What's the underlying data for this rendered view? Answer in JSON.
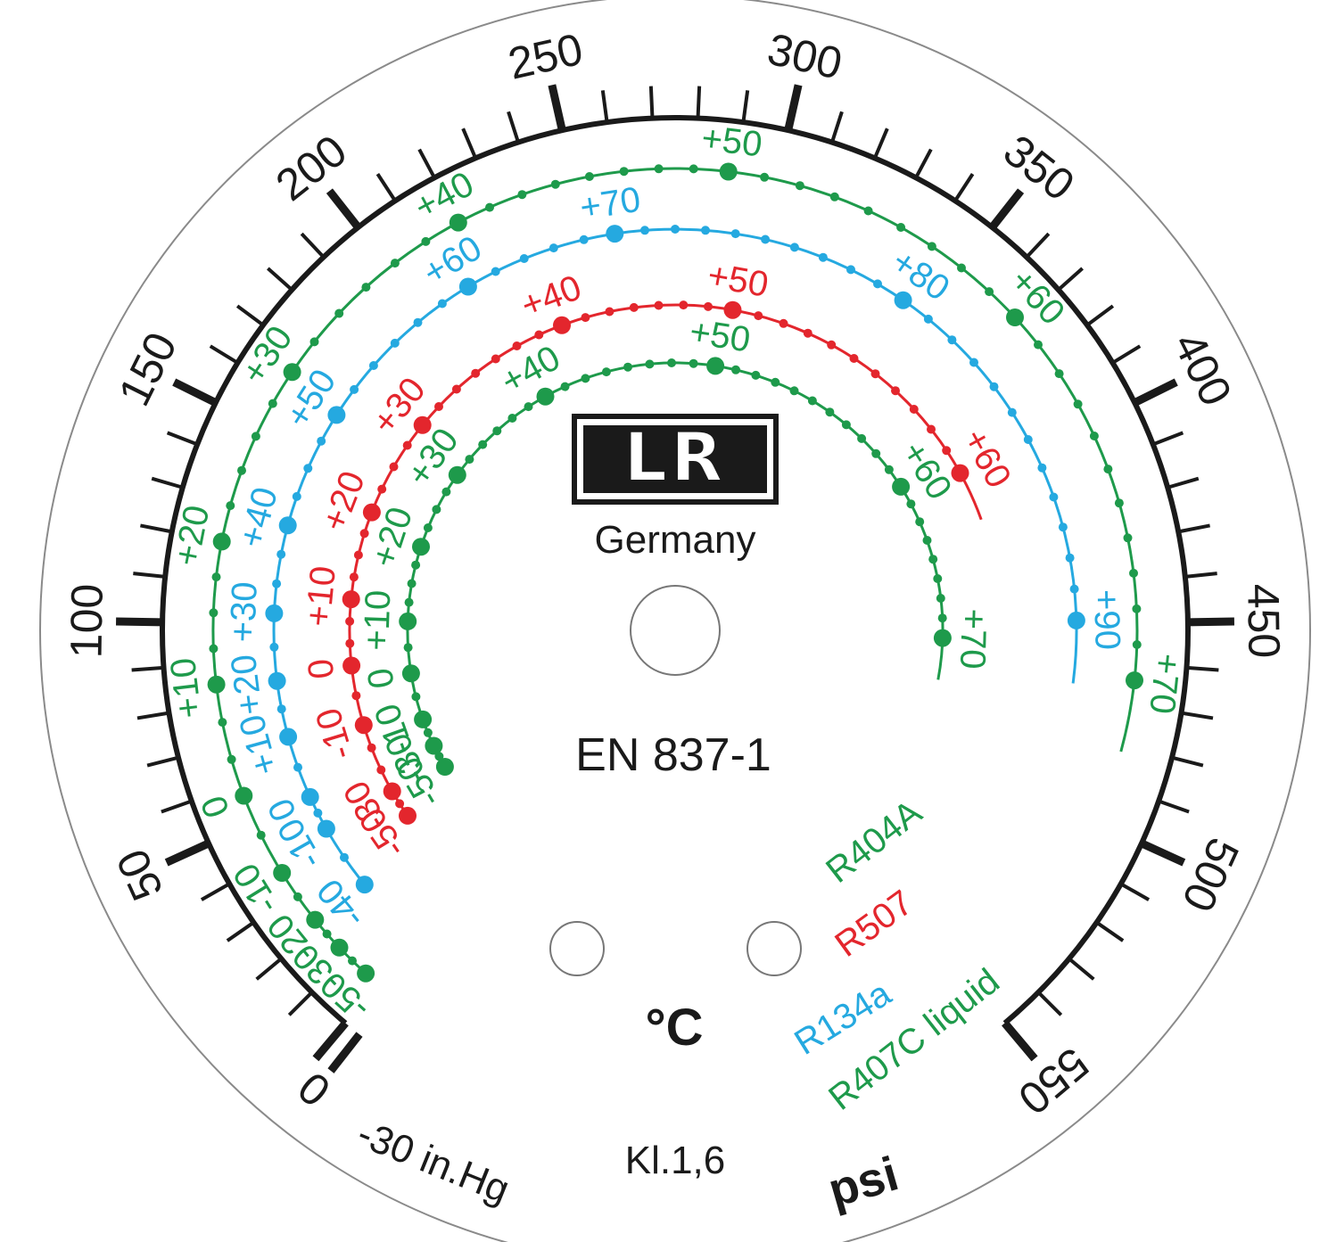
{
  "brand": {
    "logo_text": "LR",
    "origin": "Germany"
  },
  "standard": "EN 837-1",
  "accuracy_class": "Kl.1,6",
  "temperature_unit": "°C",
  "pressure_unit": "psi",
  "vacuum_label": "-30 in.Hg",
  "zero_label": "0",
  "colors": {
    "R404A": "#1e9a4b",
    "R507": "#e3262d",
    "R134a": "#25a9e0",
    "R407C": "#1e9a4b",
    "ink": "#1a1a1a"
  },
  "chart_data": {
    "type": "gauge",
    "psi_scale": {
      "min": 0,
      "max": 550,
      "major_step": 50,
      "minor_step": 10,
      "labels": [
        "50",
        "100",
        "150",
        "200",
        "250",
        "300",
        "350",
        "400",
        "450",
        "500",
        "550"
      ]
    },
    "refrigerants": [
      {
        "name": "R407C liquid",
        "color": "#1e9a4b",
        "labels": [
          "-50",
          "-30",
          "-20",
          "-10",
          "0",
          "+10",
          "+20",
          "+30",
          "+40",
          "+50",
          "+60",
          "+70"
        ],
        "label_psi": [
          4,
          13,
          22,
          36,
          57,
          85,
          120,
          165,
          220,
          288,
          368,
          464
        ]
      },
      {
        "name": "R134a",
        "color": "#25a9e0",
        "labels": [
          "-40",
          "-10",
          "0",
          "+10",
          "+20",
          "+30",
          "+40",
          "+50",
          "+60",
          "+70",
          "+80",
          "+90"
        ],
        "label_psi": [
          21,
          40,
          50,
          68,
          84,
          103,
          128,
          162,
          214,
          258,
          343,
          449
        ]
      },
      {
        "name": "R507",
        "color": "#e3262d",
        "labels": [
          "-50",
          "-30",
          "-10",
          "0",
          "+10",
          "+20",
          "+30",
          "+40",
          "+50",
          "+60"
        ],
        "label_psi": [
          30,
          40,
          65,
          86,
          109,
          140,
          175,
          235,
          295,
          395
        ]
      },
      {
        "name": "R404A",
        "color": "#1e9a4b",
        "labels": [
          "-50",
          "-30",
          "-10",
          "0",
          "+10",
          "+20",
          "+30",
          "+40",
          "+50",
          "+60",
          "+70"
        ],
        "label_psi": [
          38,
          48,
          60,
          80,
          102,
          134,
          168,
          218,
          292,
          388,
          455
        ]
      }
    ]
  }
}
